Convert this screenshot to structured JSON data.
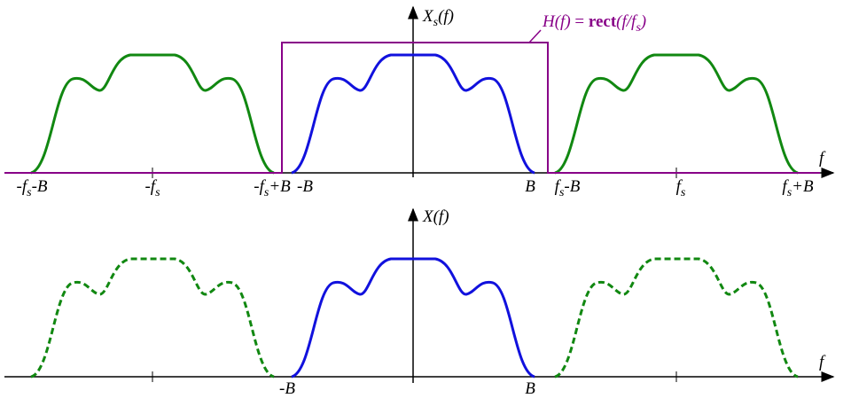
{
  "top": {
    "y_label": [
      "X",
      "s",
      "(f)"
    ],
    "x_label": "f",
    "filter_label": [
      "H(f)",
      " = ",
      "rect",
      "(f/f",
      "s",
      ")"
    ],
    "tick_labels": [
      [
        "-f",
        "s",
        "-B"
      ],
      [
        "-f",
        "s"
      ],
      [
        "-f",
        "s",
        "+B"
      ],
      [
        "-B"
      ],
      [
        "B"
      ],
      [
        "f",
        "s",
        "-B"
      ],
      [
        "f",
        "s"
      ],
      [
        "f",
        "s",
        "+B"
      ]
    ]
  },
  "bottom": {
    "y_label": [
      "X(f)"
    ],
    "x_label": "f",
    "tick_labels": [
      [
        "-B"
      ],
      [
        "B"
      ]
    ]
  }
}
